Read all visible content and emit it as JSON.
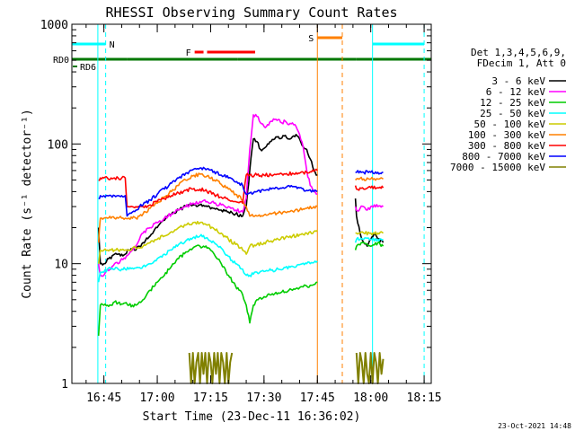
{
  "chart_data": {
    "type": "line",
    "title": "RHESSI Observing Summary Count Rates",
    "xlabel": "Start Time (23-Dec-11 16:36:02)",
    "ylabel": "Count Rate (s⁻¹ detector⁻¹)",
    "yscale": "log",
    "ylim": [
      1,
      1000
    ],
    "xlim_minutes_after_16_36": [
      0,
      101
    ],
    "y_ticks": [
      "1",
      "10",
      "100",
      "1000"
    ],
    "x_ticks": [
      {
        "label": "16:45",
        "t": 9
      },
      {
        "label": "17:00",
        "t": 24
      },
      {
        "label": "17:15",
        "t": 39
      },
      {
        "label": "17:30",
        "t": 54
      },
      {
        "label": "17:45",
        "t": 69
      },
      {
        "label": "18:00",
        "t": 84
      },
      {
        "label": "18:15",
        "t": 99
      }
    ],
    "legend_header": [
      "Det 1,3,4,5,6,9,",
      "FDecim 1, Att 0"
    ],
    "legend_placement": "right",
    "series": [
      {
        "name": "3 - 6 keV",
        "color": "#000000",
        "x": [
          7.5,
          8,
          9,
          10,
          11,
          12,
          13,
          14,
          15,
          16,
          17,
          18,
          19,
          20,
          22,
          24,
          26,
          28,
          30,
          32,
          34,
          36,
          38,
          40,
          42,
          44,
          46,
          48,
          49,
          50,
          51,
          52,
          53,
          54,
          55,
          56,
          57,
          58,
          59,
          60,
          61,
          62,
          63,
          64,
          65,
          66,
          67,
          68,
          69,
          79.7,
          80,
          81,
          82,
          83,
          84,
          85,
          86,
          87.5
        ],
        "y": [
          20,
          10,
          10,
          11,
          11,
          12,
          12,
          12,
          12,
          13,
          13,
          13,
          14,
          15,
          17,
          20,
          23,
          26,
          28,
          30,
          31,
          31,
          30,
          29,
          28,
          27,
          26,
          25,
          30,
          60,
          110,
          105,
          90,
          92,
          100,
          105,
          110,
          115,
          112,
          118,
          110,
          115,
          120,
          110,
          95,
          90,
          75,
          60,
          55,
          35,
          25,
          18,
          15,
          14,
          16,
          18,
          16,
          15
        ]
      },
      {
        "name": "6 - 12 keV",
        "color": "#ff00ff",
        "x": [
          7.5,
          8,
          9,
          10,
          11,
          12,
          13,
          14,
          15,
          16,
          17,
          18,
          19,
          20,
          22,
          24,
          26,
          28,
          30,
          32,
          34,
          36,
          38,
          40,
          42,
          44,
          46,
          48,
          49,
          50,
          51,
          52,
          53,
          54,
          55,
          56,
          57,
          58,
          59,
          60,
          61,
          62,
          63,
          64,
          65,
          66,
          67,
          68,
          69,
          79.7,
          80,
          81,
          82,
          83,
          84,
          85,
          86,
          87.5
        ],
        "y": [
          10,
          8,
          8,
          9,
          9,
          10,
          10,
          11,
          11,
          12,
          13,
          14,
          16,
          18,
          20,
          22,
          24,
          26,
          28,
          30,
          32,
          33,
          33,
          32,
          31,
          30,
          28,
          27,
          35,
          90,
          175,
          170,
          150,
          140,
          145,
          155,
          160,
          160,
          150,
          155,
          145,
          150,
          140,
          120,
          95,
          60,
          45,
          40,
          38,
          30,
          28,
          29,
          30,
          28,
          30,
          31,
          30,
          30
        ]
      },
      {
        "name": "12 - 25 keV",
        "color": "#00cc00",
        "x": [
          7.5,
          8,
          9,
          10,
          11,
          12,
          13,
          14,
          15,
          15.5,
          16,
          17,
          18,
          19,
          20,
          21,
          22,
          24,
          26,
          28,
          30,
          32,
          34,
          36,
          38,
          40,
          42,
          44,
          46,
          47,
          48,
          49,
          50,
          51,
          52,
          53,
          54,
          55,
          56,
          57,
          58,
          59,
          60,
          61,
          62,
          63,
          64,
          65,
          66,
          67,
          68,
          69,
          79.7,
          80,
          82,
          84,
          86,
          87.5
        ],
        "y": [
          2.5,
          4.5,
          4.5,
          4.5,
          4.5,
          4.8,
          4.7,
          4.6,
          4.7,
          4.6,
          4.5,
          4.5,
          4.5,
          4.8,
          5,
          5.5,
          6,
          7,
          8,
          9.5,
          11,
          12.5,
          13.5,
          14,
          13.5,
          12,
          10,
          8,
          6.5,
          6,
          5.5,
          4.5,
          3.2,
          4.5,
          5,
          5.2,
          5.3,
          5.5,
          5.5,
          5.6,
          5.7,
          5.8,
          5.8,
          6,
          6,
          6.2,
          6.3,
          6.4,
          6.5,
          6.6,
          6.7,
          7,
          13,
          14,
          15,
          14,
          15,
          14
        ]
      },
      {
        "name": "25 - 50 keV",
        "color": "#00ffff",
        "x": [
          7.5,
          8,
          9,
          10,
          11,
          12,
          13,
          14,
          15,
          16,
          17,
          18,
          19,
          20,
          22,
          24,
          26,
          28,
          30,
          32,
          34,
          36,
          38,
          40,
          42,
          44,
          46,
          48,
          49,
          50,
          52,
          54,
          56,
          58,
          60,
          62,
          64,
          66,
          68,
          69,
          79.7,
          80,
          82,
          84,
          86,
          87.5
        ],
        "y": [
          7,
          8.5,
          8.5,
          9,
          9,
          9,
          9,
          9,
          9,
          9,
          9.2,
          9.2,
          9.3,
          9.5,
          10,
          11,
          12,
          13,
          14.5,
          15.5,
          16.5,
          17,
          16.5,
          15,
          13.5,
          11.5,
          10,
          9,
          8,
          8,
          8.5,
          8.6,
          8.8,
          9,
          9.3,
          9.5,
          9.8,
          10,
          10.2,
          10.5,
          15,
          16,
          16,
          16,
          16,
          16
        ]
      },
      {
        "name": "50 - 100 keV",
        "color": "#cccc00",
        "x": [
          7.5,
          8,
          9,
          10,
          11,
          12,
          13,
          14,
          15,
          16,
          17,
          18,
          19,
          20,
          22,
          24,
          26,
          28,
          30,
          32,
          34,
          36,
          38,
          40,
          42,
          44,
          46,
          48,
          49,
          50,
          52,
          54,
          56,
          58,
          60,
          62,
          64,
          66,
          68,
          69,
          79.7,
          80,
          82,
          84,
          86,
          87.5
        ],
        "y": [
          10,
          13,
          13,
          13,
          13,
          13,
          13,
          13,
          13,
          13,
          13.5,
          13.5,
          13.5,
          14,
          15,
          16,
          17,
          18.5,
          20,
          21,
          22,
          22,
          21,
          19.5,
          18,
          16,
          14.5,
          13,
          12,
          14,
          14.5,
          15,
          15.5,
          16,
          16.5,
          17,
          17.5,
          18,
          18.5,
          19,
          18,
          18,
          18,
          18,
          18,
          18
        ]
      },
      {
        "name": "100 - 300 keV",
        "color": "#ff8000",
        "x": [
          7.5,
          8,
          9,
          10,
          11,
          12,
          13,
          14,
          15,
          16,
          17,
          18,
          19,
          20,
          22,
          24,
          26,
          28,
          30,
          32,
          34,
          36,
          38,
          40,
          42,
          44,
          46,
          48,
          49,
          50,
          52,
          54,
          56,
          58,
          60,
          62,
          64,
          66,
          68,
          69,
          79.7,
          80,
          82,
          84,
          86,
          87.5
        ],
        "y": [
          15,
          24,
          24,
          24,
          24,
          24,
          24,
          24,
          24,
          24,
          24,
          24,
          25,
          26,
          29,
          32,
          36,
          40,
          45,
          50,
          54,
          56,
          54,
          50,
          46,
          42,
          38,
          34,
          30,
          25,
          25,
          25.5,
          26,
          26.5,
          27,
          27.5,
          28,
          29,
          30,
          30,
          50,
          51,
          51,
          51,
          51,
          51
        ]
      },
      {
        "name": "300 - 800 keV",
        "color": "#ff0000",
        "x": [
          7.5,
          8,
          9,
          10,
          11,
          12,
          13,
          14,
          15,
          15.5,
          16,
          17,
          18,
          19,
          20,
          22,
          24,
          26,
          28,
          30,
          32,
          34,
          36,
          38,
          40,
          42,
          44,
          46,
          48,
          49,
          50,
          52,
          54,
          56,
          58,
          60,
          62,
          64,
          66,
          68,
          69,
          79.7,
          80,
          82,
          84,
          86,
          87.5
        ],
        "y": [
          50,
          52,
          52,
          52,
          52,
          52,
          52,
          52,
          52,
          30,
          30,
          30,
          30,
          30,
          30,
          31,
          33,
          35,
          37,
          39,
          41,
          42,
          42,
          40,
          38,
          36,
          34,
          33,
          32,
          55,
          55,
          55,
          55,
          55,
          56,
          56,
          57,
          57,
          58,
          59,
          60,
          45,
          42,
          42,
          43,
          43,
          43
        ]
      },
      {
        "name": "800 - 7000 keV",
        "color": "#0000ff",
        "x": [
          7.5,
          8,
          9,
          10,
          11,
          12,
          13,
          14,
          15,
          15.5,
          16,
          17,
          18,
          19,
          20,
          22,
          24,
          26,
          28,
          30,
          32,
          34,
          36,
          38,
          40,
          42,
          44,
          46,
          48,
          49,
          50,
          52,
          54,
          56,
          58,
          60,
          62,
          64,
          66,
          68,
          69,
          79.7,
          80,
          82,
          84,
          86,
          87.5
        ],
        "y": [
          35,
          37,
          37,
          37,
          37,
          37,
          37,
          37,
          37,
          25,
          26,
          27,
          28,
          30,
          31,
          34,
          38,
          42,
          47,
          52,
          57,
          61,
          63,
          62,
          59,
          55,
          52,
          48,
          45,
          38,
          39,
          40,
          41,
          42,
          42,
          43,
          44,
          43,
          41,
          40,
          40,
          58,
          58,
          58,
          58,
          58,
          58
        ]
      },
      {
        "name": "7000 - 15000 keV",
        "color": "#808000",
        "x": [
          33,
          33.5,
          34,
          34.5,
          35,
          35.5,
          36,
          36.5,
          37,
          37.5,
          38,
          38.5,
          39,
          39.5,
          40,
          40.5,
          41,
          41.5,
          42,
          42.5,
          43,
          43.5,
          44,
          44.5,
          45,
          80,
          80.5,
          81,
          81.5,
          82,
          82.5,
          83,
          83.5,
          84,
          84.5,
          85,
          85.5,
          86,
          86.5,
          87,
          87.5
        ],
        "y": [
          1.8,
          1.0,
          1.8,
          1.0,
          1.5,
          1.8,
          1.0,
          1.8,
          1.2,
          1.8,
          1.0,
          1.8,
          1.5,
          1.0,
          1.8,
          1.2,
          1.8,
          1.0,
          1.8,
          1.5,
          1.0,
          1.8,
          1.0,
          1.5,
          1.8,
          1.8,
          1.0,
          1.8,
          1.5,
          1.0,
          1.8,
          1.2,
          1.0,
          1.8,
          1.0,
          1.8,
          1.5,
          1.0,
          1.8,
          1.2,
          1.6
        ]
      }
    ],
    "flags": [
      {
        "label": "RD0",
        "color": "#007700",
        "label_side": "left",
        "segments": [
          [
            0,
            15.5
          ],
          [
            15.5,
            46.5
          ],
          [
            46.5,
            80
          ],
          [
            80,
            101
          ]
        ]
      },
      {
        "label": "RD6",
        "color": "#007700",
        "label_side": "left",
        "segments": []
      },
      {
        "label": "N",
        "color": "#00ffff",
        "label_side": "right",
        "segments": [
          [
            0,
            9.5
          ],
          [
            84.5,
            99
          ]
        ]
      },
      {
        "label": "F",
        "color": "#ff0000",
        "label_side": "left",
        "segments": [
          [
            34.5,
            37
          ],
          [
            38,
            51.5
          ]
        ]
      },
      {
        "label": "S",
        "color": "#ff8000",
        "label_side": "left",
        "segments": [
          [
            69,
            76
          ]
        ]
      }
    ],
    "vertical_markers": [
      {
        "t": 7.3,
        "color": "#00ffff",
        "style": "solid"
      },
      {
        "t": 9.5,
        "color": "#00ffff",
        "style": "dashed"
      },
      {
        "t": 69.0,
        "color": "#ff8000",
        "style": "solid"
      },
      {
        "t": 76.0,
        "color": "#ff8000",
        "style": "dashed"
      },
      {
        "t": 84.5,
        "color": "#00ffff",
        "style": "solid"
      },
      {
        "t": 99.0,
        "color": "#00ffff",
        "style": "dashed"
      }
    ]
  },
  "footer": {
    "timestamp": "23-Oct-2021 14:48"
  }
}
